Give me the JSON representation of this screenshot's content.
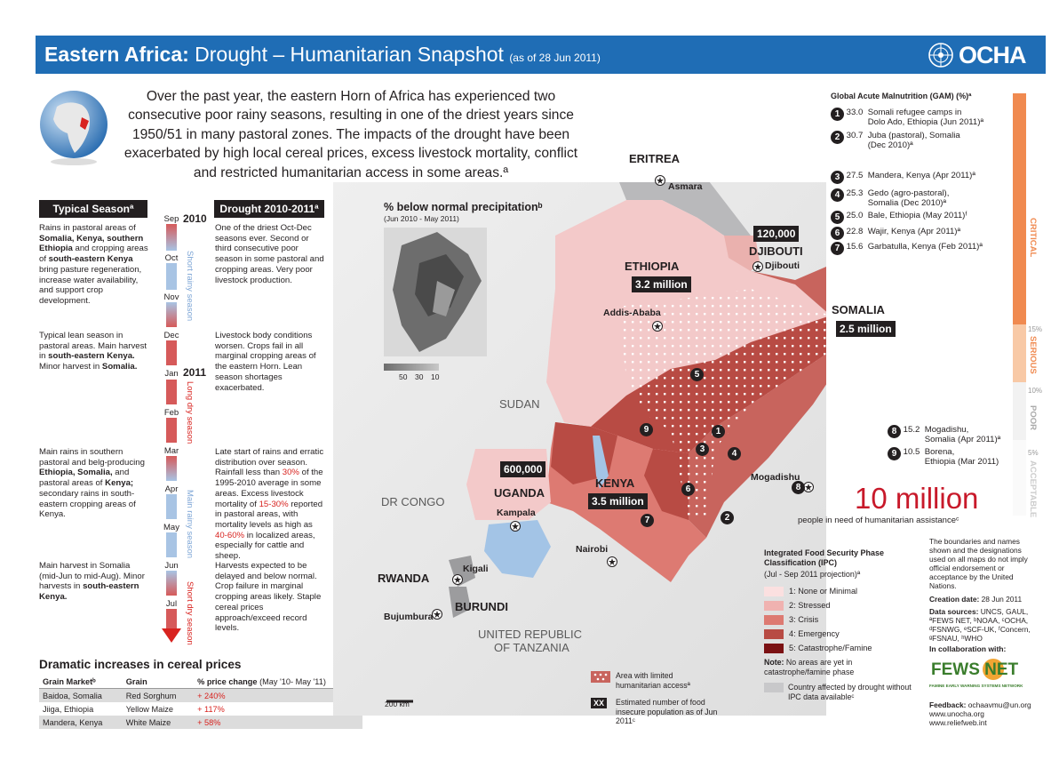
{
  "header": {
    "title_bold": "Eastern Africa:",
    "title_rest": " Drought – Humanitarian Snapshot",
    "as_of": "(as of 28 Jun 2011)",
    "logo_text": "OCHA"
  },
  "intro": "Over the past year, the eastern Horn of Africa has experienced two consecutive poor rainy seasons, resulting in one of the driest years since 1950/51 in many pastoral zones. The impacts of the drought have been exacerbated by high local cereal prices, excess livestock mortality, conflict and restricted humanitarian access in some areas.ª",
  "columns": {
    "typical_header": "Typical Seasonª",
    "drought_header": "Drought 2010-2011ª",
    "year_2010": "2010",
    "year_2011": "2011",
    "months": [
      "Sep",
      "Oct",
      "Nov",
      "Dec",
      "Jan",
      "Feb",
      "Mar",
      "Apr",
      "May",
      "Jun",
      "Jul"
    ],
    "season_short_rainy": "Short rainy season",
    "season_long_dry": "Long dry season",
    "season_main_rainy": "Main rainy season",
    "season_short_dry": "Short dry season",
    "typical": [
      {
        "pre": "Rains in pastoral areas of ",
        "b1": "Somalia, Kenya, southern Ethiopia",
        "mid": " and cropping areas of ",
        "b2": "south-eastern Kenya",
        "post": " bring pasture regeneration, increase water availability, and support crop development."
      },
      {
        "pre": "Typical lean season in pastoral areas. Main harvest in ",
        "b1": "south-eastern Kenya.",
        "mid": " Minor harvest in ",
        "b2": "Somalia.",
        "post": ""
      },
      {
        "pre": "Main rains in southern pastoral and belg-producing ",
        "b1": "Ethiopia, Somalia,",
        "mid": " and pastoral areas of ",
        "b2": "Kenya;",
        "post": " secondary rains in south-eastern cropping areas of Kenya."
      },
      {
        "pre": "Main harvest in Somalia (mid-Jun to mid-Aug). Minor harvests in ",
        "b1": "south-eastern Kenya.",
        "mid": "",
        "b2": "",
        "post": ""
      }
    ],
    "drought": [
      {
        "text": "One of the driest Oct-Dec seasons ever. Second or third consecutive poor season in some pastoral and cropping areas. Very poor livestock production."
      },
      {
        "text": "Livestock body conditions worsen. Crops fail in all marginal cropping areas of the eastern Horn. Lean season shortages exacerbated."
      },
      {
        "t1": "Late start of rains and erratic distribution over season. Rainfall less than ",
        "r1": "30%",
        "t2": " of the 1995-2010 average in some areas. Excess livestock mortality of ",
        "r2": "15-30%",
        "t3": " reported in pastoral areas, with mortality levels as high as ",
        "r3": "40-60%",
        "t4": " in localized areas, especially for cattle and sheep."
      },
      {
        "text": "Harvests expected to be delayed and below normal. Crop failure in marginal cropping areas likely. Staple cereal prices approach/exceed record levels."
      }
    ]
  },
  "cereal": {
    "title": "Dramatic increases in cereal prices",
    "headers": [
      "Grain Marketᵇ",
      "Grain",
      "% price change",
      "(May '10- May '11)"
    ],
    "rows": [
      {
        "market": "Baidoa, Somalia",
        "grain": "Red Sorghum",
        "change": "+ 240%"
      },
      {
        "market": "Jiiga, Ethiopia",
        "grain": "Yellow Maize",
        "change": "+ 117%"
      },
      {
        "market": "Mandera, Kenya",
        "grain": "White Maize",
        "change": "+ 58%"
      }
    ]
  },
  "inset": {
    "title": "% below normal precipitationᵇ",
    "subtitle": "(Jun 2010 - May 2011)",
    "scale": [
      "50",
      "30",
      "10"
    ]
  },
  "map": {
    "countries": {
      "eritrea": "ERITREA",
      "ethiopia": "ETHIOPIA",
      "djibouti": "DJIBOUTI",
      "somalia": "SOMALIA",
      "kenya": "KENYA",
      "uganda": "UGANDA",
      "rwanda": "RWANDA",
      "burundi": "BURUNDI",
      "sudan": "SUDAN",
      "drc": "DR CONGO",
      "tanzania_1": "UNITED REPUBLIC",
      "tanzania_2": "OF TANZANIA"
    },
    "cities": {
      "asmara": "Asmara",
      "djibouti": "Djibouti",
      "addis": "Addis-Ababa",
      "mogadishu": "Mogadishu",
      "nairobi": "Nairobi",
      "kampala": "Kampala",
      "kigali": "Kigali",
      "bujumbura": "Bujumbura"
    },
    "pop": {
      "djibouti": "120,000",
      "ethiopia": "3.2 million",
      "somalia": "2.5 million",
      "kenya": "3.5 million",
      "uganda": "600,000"
    },
    "scalebar": "200 km",
    "markers": [
      "1",
      "2",
      "3",
      "4",
      "5",
      "6",
      "7",
      "8",
      "9"
    ]
  },
  "gam": {
    "title": "Global Acute Malnutrition (GAM) (%)ª",
    "items": [
      {
        "n": "1",
        "value": "33.0",
        "l1": "Somali refugee camps in",
        "l2": "Dolo Ado, Ethiopia (Jun 2011)ª"
      },
      {
        "n": "2",
        "value": "30.7",
        "l1": "Juba (pastoral), Somalia",
        "l2": "(Dec 2010)ª"
      },
      {
        "n": "3",
        "value": "27.5",
        "l1": "Mandera, Kenya (Apr 2011)ª",
        "l2": ""
      },
      {
        "n": "4",
        "value": "25.3",
        "l1": "Gedo (agro-pastoral),",
        "l2": "Somalia (Dec 2010)ª"
      },
      {
        "n": "5",
        "value": "25.0",
        "l1": "Bale, Ethiopia (May 2011)ᶠ",
        "l2": ""
      },
      {
        "n": "6",
        "value": "22.8",
        "l1": "Wajir, Kenya (Apr 2011)ª",
        "l2": ""
      },
      {
        "n": "7",
        "value": "15.6",
        "l1": "Garbatulla, Kenya (Feb 2011)ª",
        "l2": ""
      },
      {
        "n": "8",
        "value": "15.2",
        "l1": "Mogadishu,",
        "l2": "Somalia (Apr 2011)ª"
      },
      {
        "n": "9",
        "value": "10.5",
        "l1": "Borena,",
        "l2": "Ethiopia (Mar 2011)"
      }
    ],
    "scale_labels": {
      "critical": "CRITICAL",
      "serious": "SERIOUS",
      "poor": "POOR",
      "acceptable": "ACCEPTABLE",
      "p15": "15%",
      "p10": "10%",
      "p5": "5%"
    }
  },
  "headline": {
    "big": "10 million",
    "sub": "people in need of humanitarian assistanceᶜ"
  },
  "ipc": {
    "title": "Integrated Food Security Phase Classification (IPC)",
    "subtitle": "(Jul - Sep 2011 projection)ª",
    "phases": [
      {
        "label": "1: None or Minimal",
        "color": "#fbe0e0"
      },
      {
        "label": "2: Stressed",
        "color": "#f0b2b0"
      },
      {
        "label": "3: Crisis",
        "color": "#dd7a72"
      },
      {
        "label": "4: Emergency",
        "color": "#b84b44"
      },
      {
        "label": "5: Catastrophe/Famine",
        "color": "#7b1113"
      }
    ],
    "note_b": "Note:",
    "note": " No areas are yet in catastrophe/famine phase",
    "grey_label": "Country affected by drought without IPC data availableᶜ"
  },
  "legend2": {
    "limited_access": "Area with limited humanitarian accessª",
    "xx": "XX",
    "insecure": "Estimated number of food insecure population as of Jun 2011ᶜ"
  },
  "footer": {
    "disclaimer": "The boundaries and names shown and the designations used on all maps do not imply official endorsement or acceptance by the United Nations.",
    "creation_label": "Creation date:",
    "creation_date": "28 Jun 2011",
    "sources_label": "Data sources:",
    "sources": "UNCS, GAUL, ªFEWS NET, ᵇNOAA, ᶜOCHA, ᵈFSNWG, ᵉSCF-UK, ᶠConcern, ᵍFSNAU, ʰWHO",
    "collab": "In collaboration with:",
    "fews": "FEWS NET",
    "fews_sub": "FAMINE EARLY WARNING SYSTEMS NETWORK",
    "feedback_label": "Feedback:",
    "feedback": "ochaavmu@un.org",
    "url1": "www.unocha.org",
    "url2": "www.reliefweb.int"
  }
}
